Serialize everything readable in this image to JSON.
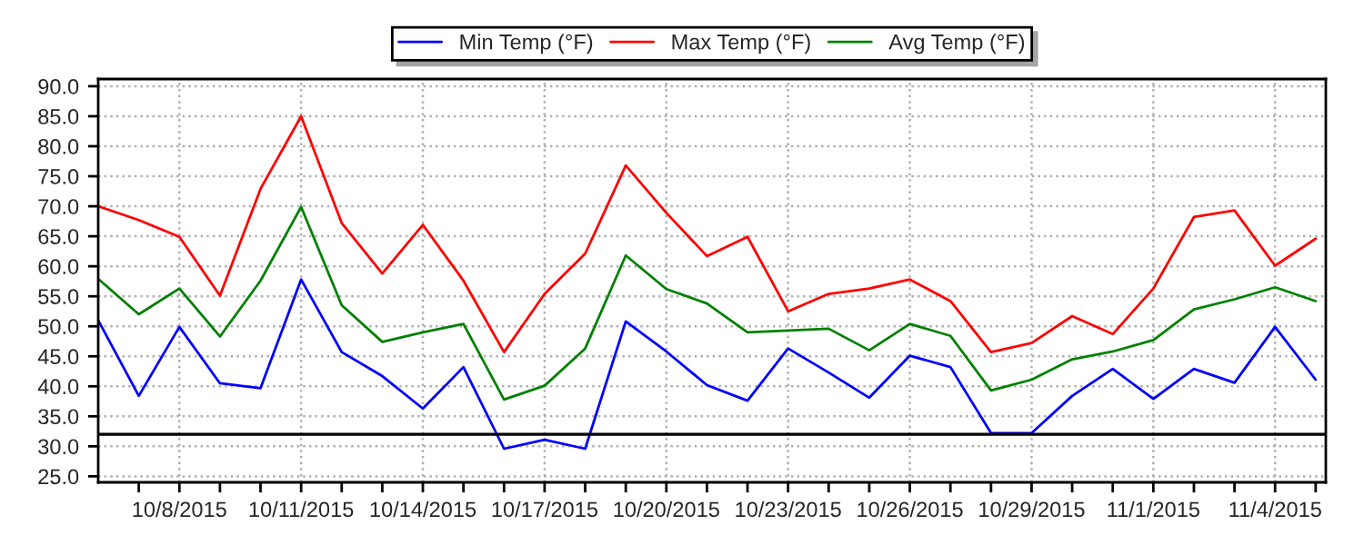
{
  "chart_data": {
    "type": "line",
    "x": [
      "2015-10-06",
      "2015-10-07",
      "2015-10-08",
      "2015-10-09",
      "2015-10-10",
      "2015-10-11",
      "2015-10-12",
      "2015-10-13",
      "2015-10-14",
      "2015-10-15",
      "2015-10-16",
      "2015-10-17",
      "2015-10-18",
      "2015-10-19",
      "2015-10-20",
      "2015-10-21",
      "2015-10-22",
      "2015-10-23",
      "2015-10-24",
      "2015-10-25",
      "2015-10-26",
      "2015-10-27",
      "2015-10-28",
      "2015-10-29",
      "2015-10-30",
      "2015-10-31",
      "2015-11-01",
      "2015-11-02",
      "2015-11-03",
      "2015-11-04",
      "2015-11-05"
    ],
    "series": [
      {
        "name": "Min Temp (°F)",
        "color": "#0000ff",
        "values": [
          51.0,
          38.4,
          49.9,
          40.5,
          39.7,
          57.8,
          45.7,
          41.7,
          36.3,
          43.2,
          29.6,
          31.1,
          29.6,
          50.8,
          45.8,
          40.2,
          37.6,
          46.3,
          42.3,
          38.1,
          45.1,
          43.2,
          32.2,
          32.2,
          38.4,
          42.9,
          37.9,
          42.9,
          40.6,
          49.9,
          41.1
        ]
      },
      {
        "name": "Max Temp (°F)",
        "color": "#ff0000",
        "values": [
          70.0,
          67.7,
          64.9,
          55.1,
          72.9,
          85.0,
          67.2,
          58.8,
          66.9,
          57.6,
          45.7,
          55.4,
          62.1,
          76.8,
          68.9,
          61.7,
          64.9,
          52.5,
          55.4,
          56.3,
          57.8,
          54.2,
          45.7,
          47.2,
          51.7,
          48.7,
          56.3,
          68.2,
          69.3,
          60.1,
          64.6
        ]
      },
      {
        "name": "Avg Temp (°F)",
        "color": "#008000",
        "values": [
          57.9,
          52.0,
          56.3,
          48.3,
          57.6,
          69.9,
          53.5,
          47.4,
          49.0,
          50.4,
          37.8,
          40.1,
          46.3,
          61.8,
          56.2,
          53.8,
          49.0,
          49.3,
          49.6,
          46.0,
          50.4,
          48.4,
          39.3,
          41.1,
          44.5,
          45.8,
          47.7,
          52.8,
          54.5,
          56.5,
          54.2
        ]
      }
    ],
    "xlim": [
      "2015-10-06",
      "2015-11-05T06:00"
    ],
    "xticks": [
      {
        "value": "2015-10-07",
        "label": null
      },
      {
        "value": "2015-10-08",
        "label": "10/8/2015"
      },
      {
        "value": "2015-10-09",
        "label": null
      },
      {
        "value": "2015-10-10",
        "label": null
      },
      {
        "value": "2015-10-11",
        "label": "10/11/2015"
      },
      {
        "value": "2015-10-12",
        "label": null
      },
      {
        "value": "2015-10-13",
        "label": null
      },
      {
        "value": "2015-10-14",
        "label": "10/14/2015"
      },
      {
        "value": "2015-10-15",
        "label": null
      },
      {
        "value": "2015-10-16",
        "label": null
      },
      {
        "value": "2015-10-17",
        "label": "10/17/2015"
      },
      {
        "value": "2015-10-18",
        "label": null
      },
      {
        "value": "2015-10-19",
        "label": null
      },
      {
        "value": "2015-10-20",
        "label": "10/20/2015"
      },
      {
        "value": "2015-10-21",
        "label": null
      },
      {
        "value": "2015-10-22",
        "label": null
      },
      {
        "value": "2015-10-23",
        "label": "10/23/2015"
      },
      {
        "value": "2015-10-24",
        "label": null
      },
      {
        "value": "2015-10-25",
        "label": null
      },
      {
        "value": "2015-10-26",
        "label": "10/26/2015"
      },
      {
        "value": "2015-10-27",
        "label": null
      },
      {
        "value": "2015-10-28",
        "label": null
      },
      {
        "value": "2015-10-29",
        "label": "10/29/2015"
      },
      {
        "value": "2015-10-30",
        "label": null
      },
      {
        "value": "2015-10-31",
        "label": null
      },
      {
        "value": "2015-11-01",
        "label": "11/1/2015"
      },
      {
        "value": "2015-11-02",
        "label": null
      },
      {
        "value": "2015-11-03",
        "label": null
      },
      {
        "value": "2015-11-04",
        "label": "11/4/2015"
      },
      {
        "value": "2015-11-05",
        "label": null
      }
    ],
    "ylim": [
      24,
      91.2
    ],
    "yticks": [
      {
        "value": 25,
        "label": "25.0"
      },
      {
        "value": 30,
        "label": "30.0"
      },
      {
        "value": 35,
        "label": "35.0"
      },
      {
        "value": 40,
        "label": "40.0"
      },
      {
        "value": 45,
        "label": "45.0"
      },
      {
        "value": 50,
        "label": "50.0"
      },
      {
        "value": 55,
        "label": "55.0"
      },
      {
        "value": 60,
        "label": "60.0"
      },
      {
        "value": 65,
        "label": "65.0"
      },
      {
        "value": 70,
        "label": "70.0"
      },
      {
        "value": 75,
        "label": "75.0"
      },
      {
        "value": 80,
        "label": "80.0"
      },
      {
        "value": 85,
        "label": "85.0"
      },
      {
        "value": 90,
        "label": "90.0"
      }
    ],
    "ref_lines": [
      {
        "axis": "y",
        "value": 32,
        "color": "#000000"
      }
    ],
    "grid": true,
    "legend": "top",
    "marker": "none",
    "line_style": "solid"
  }
}
